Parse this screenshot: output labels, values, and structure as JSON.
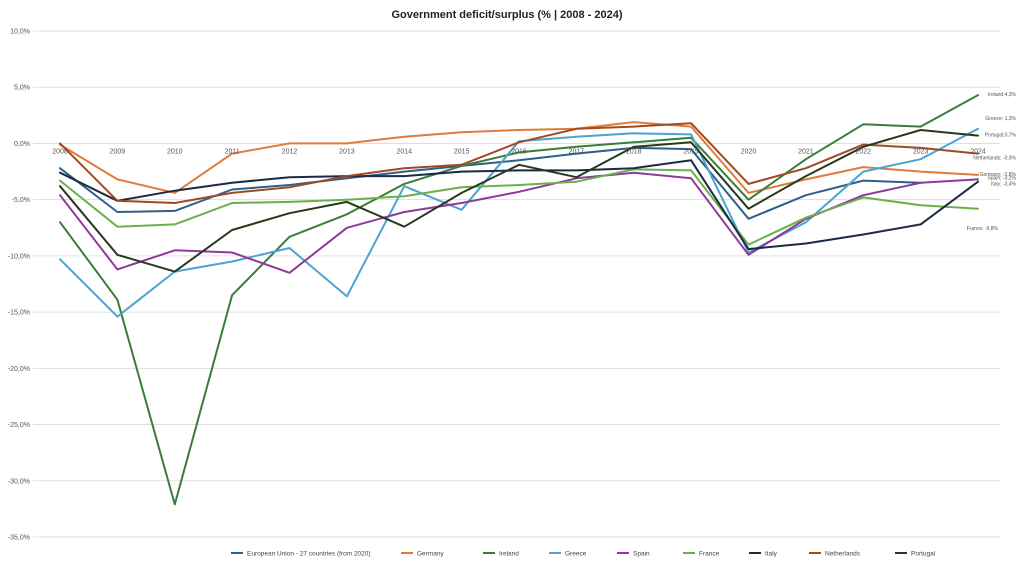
{
  "chart_data": {
    "type": "line",
    "title": "Government deficit/surplus (% | 2008 - 2024)",
    "x": [
      "2008",
      "2009",
      "2010",
      "2011",
      "2012",
      "2013",
      "2014",
      "2015",
      "2016",
      "2017",
      "2018",
      "2019",
      "2020",
      "2021",
      "2022",
      "2023",
      "2024"
    ],
    "ylim": [
      -35,
      10
    ],
    "y_ticks": [
      "10,0%",
      "5,0%",
      "0,0%",
      "-5,0%",
      "-10,0%",
      "-15,0%",
      "-20,0%",
      "-25,0%",
      "-30,0%",
      "-35,0%"
    ],
    "grid": true,
    "legend_position": "bottom",
    "series": [
      {
        "name": "European Union - 27 countries (from 2020)",
        "color": "#2e5f8a",
        "values": [
          -2.2,
          -6.1,
          -6.0,
          -4.1,
          -3.7,
          -3.1,
          -2.5,
          -2.0,
          -1.5,
          -0.9,
          -0.4,
          -0.5,
          -6.7,
          -4.6,
          -3.3,
          -3.5,
          null
        ]
      },
      {
        "name": "Germany",
        "color": "#e07b39",
        "values": [
          -0.1,
          -3.2,
          -4.4,
          -0.9,
          0.0,
          0.0,
          0.6,
          1.0,
          1.2,
          1.3,
          1.9,
          1.5,
          -4.4,
          -3.2,
          -2.1,
          -2.5,
          -2.8
        ]
      },
      {
        "name": "Ireland",
        "color": "#3a7d3a",
        "values": [
          -7.0,
          -13.9,
          -32.1,
          -13.5,
          -8.3,
          -6.3,
          -3.6,
          -2.0,
          -0.8,
          -0.3,
          0.1,
          0.5,
          -5.0,
          -1.4,
          1.7,
          1.5,
          4.3
        ]
      },
      {
        "name": "Greece",
        "color": "#4ba3d1",
        "values": [
          -10.3,
          -15.4,
          -11.4,
          -10.5,
          -9.3,
          -13.6,
          -3.8,
          -5.9,
          0.2,
          0.6,
          0.9,
          0.8,
          -9.7,
          -7.0,
          -2.5,
          -1.4,
          1.3
        ]
      },
      {
        "name": "Spain",
        "color": "#8e3a99",
        "values": [
          -4.6,
          -11.2,
          -9.5,
          -9.7,
          -11.5,
          -7.5,
          -6.1,
          -5.3,
          -4.3,
          -3.1,
          -2.6,
          -3.1,
          -9.9,
          -6.7,
          -4.6,
          -3.5,
          -3.2
        ]
      },
      {
        "name": "France",
        "color": "#6ab04c",
        "values": [
          -3.3,
          -7.4,
          -7.2,
          -5.3,
          -5.2,
          -5.0,
          -4.7,
          -3.9,
          -3.7,
          -3.4,
          -2.3,
          -2.4,
          -9.0,
          -6.6,
          -4.8,
          -5.5,
          -5.8
        ]
      },
      {
        "name": "Italy",
        "color": "#1c2a44",
        "values": [
          -2.6,
          -5.1,
          -4.2,
          -3.5,
          -3.0,
          -2.9,
          -2.9,
          -2.5,
          -2.4,
          -2.4,
          -2.2,
          -1.5,
          -9.4,
          -8.9,
          -8.1,
          -7.2,
          -3.4
        ]
      },
      {
        "name": "Netherlands",
        "color": "#9e4a24",
        "values": [
          0.0,
          -5.1,
          -5.3,
          -4.4,
          -3.9,
          -2.9,
          -2.2,
          -1.9,
          0.1,
          1.3,
          1.5,
          1.8,
          -3.6,
          -2.2,
          -0.1,
          -0.4,
          -0.9
        ]
      },
      {
        "name": "Portugal",
        "color": "#27391c",
        "values": [
          -3.8,
          -9.9,
          -11.4,
          -7.7,
          -6.2,
          -5.2,
          -7.4,
          -4.4,
          -1.9,
          -3.0,
          -0.3,
          0.1,
          -5.8,
          -2.9,
          -0.3,
          1.2,
          0.7
        ]
      }
    ],
    "end_labels": [
      {
        "text": "Ireland;4,3%",
        "value": 4.3
      },
      {
        "text": "Greece; 1,3%",
        "value": 1.3
      },
      {
        "text": "Portugal;0,7%",
        "value": 0.7
      },
      {
        "text": "Netherlands; -0,9%",
        "value": -0.9
      },
      {
        "text": "Germany; -2,8%",
        "value": -2.8
      },
      {
        "text": "Spain; -3,2%",
        "value": -3.2
      },
      {
        "text": "Italy; -3,4%",
        "value": -3.4
      },
      {
        "text": "France; -5,8%",
        "value": -5.8
      }
    ]
  }
}
